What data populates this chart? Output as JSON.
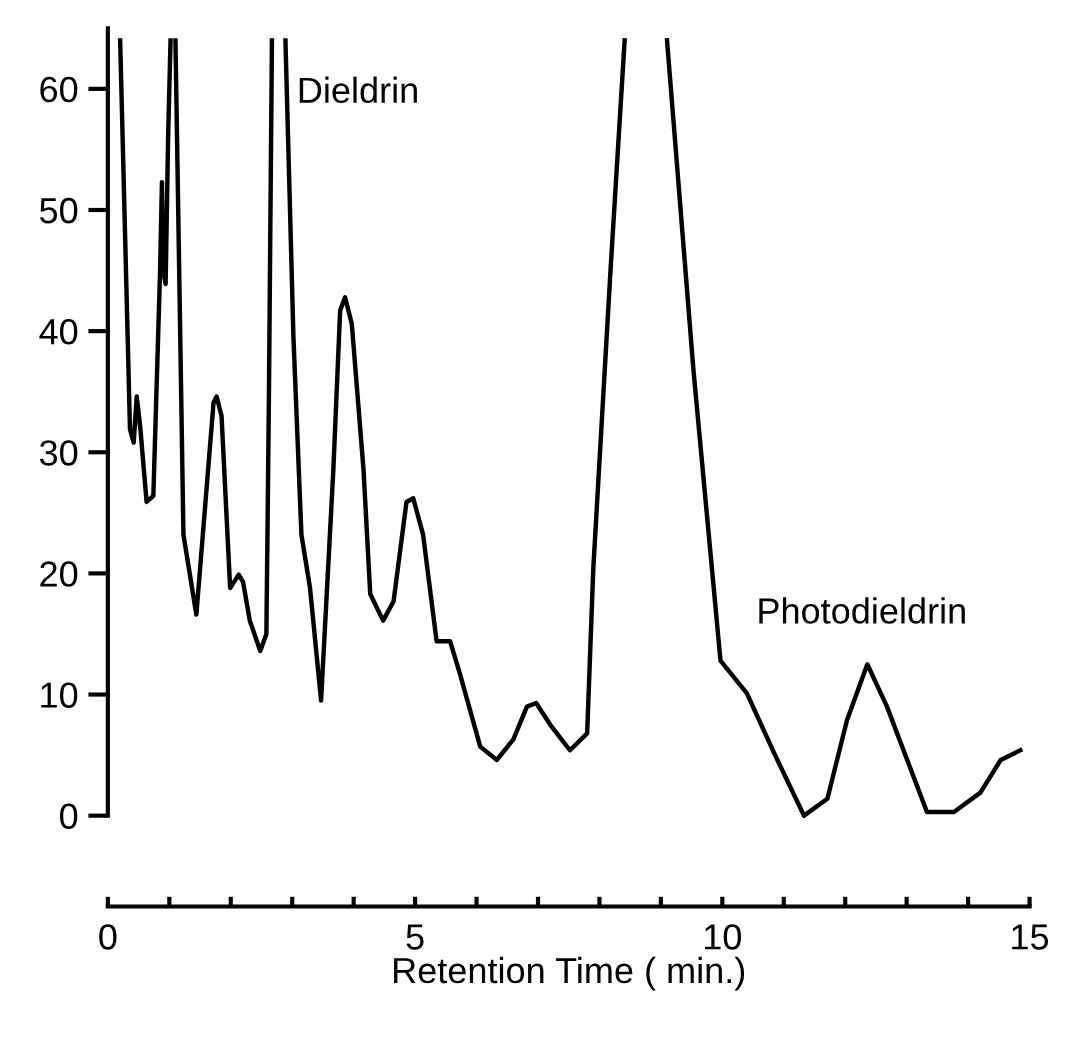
{
  "chart_data": {
    "type": "line",
    "xlabel": "Retention Time ( min.)",
    "x": [
      0.2,
      0.36,
      0.42,
      0.47,
      0.53,
      0.63,
      0.74,
      0.85,
      0.88,
      0.9,
      0.94,
      0.98,
      1.02,
      1.06,
      1.1,
      1.23,
      1.44,
      1.72,
      1.77,
      1.85,
      1.99,
      2.13,
      2.2,
      2.31,
      2.48,
      2.58,
      2.62,
      2.67,
      2.78,
      2.89,
      3.02,
      3.15,
      3.29,
      3.47,
      3.67,
      3.78,
      3.86,
      3.97,
      4.16,
      4.27,
      4.48,
      4.65,
      4.86,
      4.97,
      5.13,
      5.35,
      5.57,
      5.73,
      6.06,
      6.33,
      6.6,
      6.82,
      6.97,
      7.2,
      7.52,
      7.8,
      7.9,
      8.18,
      8.41,
      8.75,
      9.1,
      9.53,
      9.97,
      10.4,
      10.84,
      11.33,
      11.71,
      12.03,
      12.36,
      12.68,
      13.33,
      13.77,
      14.2,
      14.53,
      14.85
    ],
    "series": [
      {
        "color": "#000000",
        "values": [
          64,
          31.9,
          30.8,
          34.6,
          31.9,
          25.9,
          26.4,
          45,
          52.3,
          45,
          43.9,
          55.9,
          64,
          null,
          64,
          23.2,
          16.6,
          34.1,
          34.6,
          33,
          18.8,
          19.9,
          19.3,
          16.1,
          13.6,
          15,
          34,
          64,
          null,
          64,
          39.5,
          23.2,
          18.8,
          9.5,
          28.6,
          41.7,
          42.8,
          40.6,
          28.6,
          18.3,
          16.1,
          17.7,
          25.9,
          26.2,
          23.2,
          14.4,
          14.4,
          11.7,
          5.7,
          4.6,
          6.3,
          9,
          9.3,
          7.5,
          5.4,
          6.8,
          20.4,
          45,
          64,
          null,
          64,
          36.8,
          12.8,
          10.1,
          5.2,
          0,
          1.4,
          7.9,
          12.5,
          9,
          0.3,
          0.3,
          1.9,
          4.6,
          5.4
        ]
      }
    ],
    "xlim": [
      0,
      15
    ],
    "xticks": [
      0,
      {
        "value": 1,
        "label": null
      },
      {
        "value": 2,
        "label": null
      },
      {
        "value": 3,
        "label": null
      },
      {
        "value": 4,
        "label": null
      },
      5,
      {
        "value": 6,
        "label": null
      },
      {
        "value": 7,
        "label": null
      },
      {
        "value": 8,
        "label": null
      },
      {
        "value": 9,
        "label": null
      },
      10,
      {
        "value": 11,
        "label": null
      },
      {
        "value": 12,
        "label": null
      },
      {
        "value": 13,
        "label": null
      },
      {
        "value": 14,
        "label": null
      },
      15
    ],
    "ylim": [
      -7.5,
      65
    ],
    "yticks": [
      0,
      10,
      20,
      30,
      40,
      50,
      60
    ],
    "annotations": [
      "Dieldrin",
      {
        "text": "Photodieldrin",
        "x": 12.36,
        "y": 12.5
      }
    ],
    "grid": false,
    "legend": false,
    "marker": "none",
    "line_style": "solid"
  }
}
